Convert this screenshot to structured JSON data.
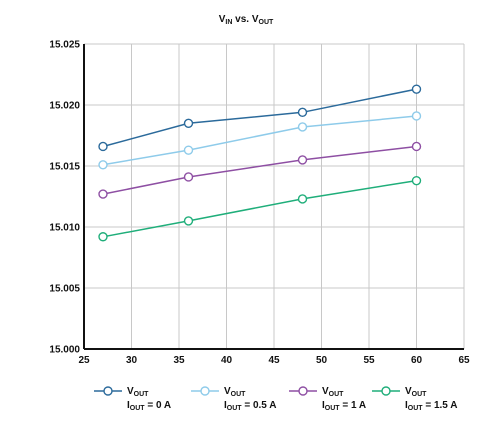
{
  "chart_data": {
    "type": "line",
    "title": {
      "main": "V",
      "main_sub": "IN",
      "mid": " vs. V",
      "mid_sub": "OUT"
    },
    "xlabel": "",
    "ylabel": "",
    "xlim": [
      25,
      65
    ],
    "ylim": [
      15.0,
      15.025
    ],
    "xticks": [
      "25",
      "30",
      "35",
      "40",
      "45",
      "50",
      "55",
      "60",
      "65"
    ],
    "yticks": [
      "15.000",
      "15.005",
      "15.010",
      "15.015",
      "15.020",
      "15.025"
    ],
    "grid": true,
    "legend_position": "bottom",
    "series": [
      {
        "label_main": "V",
        "label_main_sub": "OUT",
        "label_line2": "I",
        "label_line2_sub": "OUT",
        "label_line2_rest": " = 0 A",
        "color": "#2b6a9b",
        "points": [
          [
            27,
            15.0166
          ],
          [
            36,
            15.0185
          ],
          [
            48,
            15.0194
          ],
          [
            60,
            15.0213
          ]
        ]
      },
      {
        "label_main": "V",
        "label_main_sub": "OUT",
        "label_line2": "I",
        "label_line2_sub": "OUT",
        "label_line2_rest": " = 0.5 A",
        "color": "#8ecbea",
        "points": [
          [
            27,
            15.0151
          ],
          [
            36,
            15.0163
          ],
          [
            48,
            15.0182
          ],
          [
            60,
            15.0191
          ]
        ]
      },
      {
        "label_main": "V",
        "label_main_sub": "OUT",
        "label_line2": "I",
        "label_line2_sub": "OUT",
        "label_line2_rest": " = 1 A",
        "color": "#8e4fa3",
        "points": [
          [
            27,
            15.0127
          ],
          [
            36,
            15.0141
          ],
          [
            48,
            15.0155
          ],
          [
            60,
            15.0166
          ]
        ]
      },
      {
        "label_main": "V",
        "label_main_sub": "OUT",
        "label_line2": "I",
        "label_line2_sub": "OUT",
        "label_line2_rest": " = 1.5 A",
        "color": "#1fae7a",
        "points": [
          [
            27,
            15.0092
          ],
          [
            36,
            15.0105
          ],
          [
            48,
            15.0123
          ],
          [
            60,
            15.0138
          ]
        ]
      }
    ]
  }
}
